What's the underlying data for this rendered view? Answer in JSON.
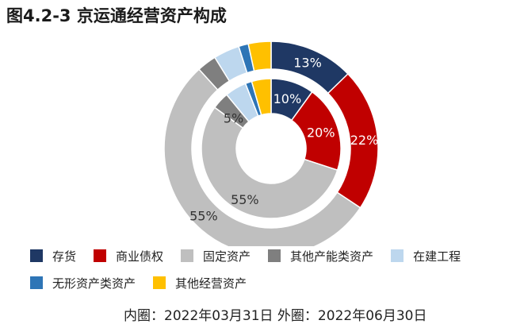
{
  "title": "图4.2-3 京运通经营资产构成",
  "footnote": "内圈：2022年03月31日 外圈：2022年06月30日",
  "chart_data": {
    "type": "pie",
    "categories": [
      "存货",
      "商业债权",
      "固定资产",
      "其他产能类资产",
      "在建工程",
      "无形资产类资产",
      "其他经营资产"
    ],
    "colors": [
      "#1f3864",
      "#c00000",
      "#bfbfbf",
      "#7f7f7f",
      "#bdd7ee",
      "#2e75b6",
      "#ffc000"
    ],
    "series": [
      {
        "name": "内圈：2022年03月31日",
        "values": [
          10,
          20,
          55,
          4,
          5,
          1.5,
          4.5
        ],
        "labels": [
          "10%",
          "20%",
          "55%",
          "",
          "5%",
          "",
          ""
        ]
      },
      {
        "name": "外圈：2022年06月30日",
        "values": [
          13,
          22,
          55,
          3,
          4,
          1.5,
          3.5
        ],
        "labels": [
          "13%",
          "22%",
          "55%",
          "",
          "",
          "",
          ""
        ]
      }
    ]
  }
}
